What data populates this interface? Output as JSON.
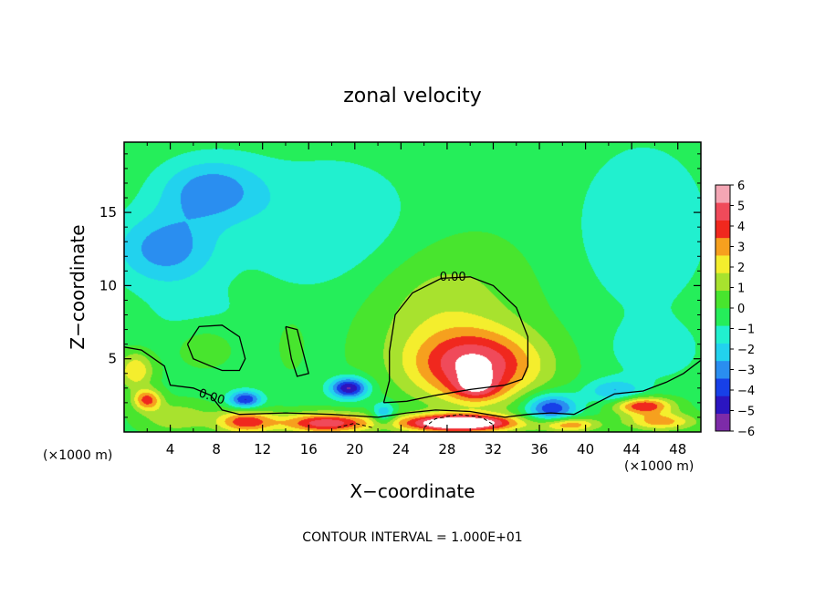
{
  "chart_data": {
    "type": "heatmap",
    "title": "zonal velocity",
    "xlabel": "X−coordinate",
    "ylabel": "Z−coordinate",
    "x_unit_left": "(×1000 m)",
    "x_unit_right": "(×1000 m)",
    "footer": "CONTOUR INTERVAL = 1.000E+01",
    "xlim": [
      0,
      50
    ],
    "ylim": [
      0,
      19.8
    ],
    "x_ticks": [
      4,
      8,
      12,
      16,
      20,
      24,
      28,
      32,
      36,
      40,
      44,
      48
    ],
    "x_tick_labels": [
      "4",
      "8",
      "12",
      "16",
      "20",
      "24",
      "28",
      "32",
      "36",
      "40",
      "44",
      "48"
    ],
    "y_ticks": [
      5,
      10,
      15
    ],
    "y_tick_labels": [
      "5",
      "10",
      "15"
    ],
    "contour_label": "0.00",
    "colorbar": {
      "min": -6,
      "max": 6,
      "ticks": [
        6,
        5,
        4,
        3,
        2,
        1,
        0,
        -1,
        -2,
        -3,
        -4,
        -5,
        -6
      ],
      "tick_labels": [
        "6",
        "5",
        "4",
        "3",
        "2",
        "1",
        "0",
        "−1",
        "−2",
        "−3",
        "−4",
        "−5",
        "−6"
      ],
      "colors": [
        "#7d2ba8",
        "#2b15c0",
        "#1740e8",
        "#2a8ef0",
        "#22d2ee",
        "#21f0cf",
        "#25ee5a",
        "#48e52e",
        "#a8e22e",
        "#f4ee2d",
        "#f6a01e",
        "#f0281e",
        "#f04a5a",
        "#f4a6b4"
      ]
    },
    "field_features": [
      {
        "x": 30.5,
        "z": 4.5,
        "sx": 5.5,
        "sz": 2.4,
        "value": 5.5
      },
      {
        "x": 30.5,
        "z": 3.0,
        "sx": 2.0,
        "sz": 0.9,
        "value": 2.5
      },
      {
        "x": 27.5,
        "z": 8.5,
        "sx": 7.0,
        "sz": 4.5,
        "value": 1.8
      },
      {
        "x": 19.5,
        "z": 3.0,
        "sx": 1.6,
        "sz": 0.7,
        "value": -5.5
      },
      {
        "x": 10.5,
        "z": 2.2,
        "sx": 1.4,
        "sz": 0.6,
        "value": -4.5
      },
      {
        "x": 2.0,
        "z": 2.2,
        "sx": 1.2,
        "sz": 0.7,
        "value": 4.2
      },
      {
        "x": 1.0,
        "z": 4.2,
        "sx": 1.5,
        "sz": 1.2,
        "value": 3.0
      },
      {
        "x": 4.5,
        "z": 1.0,
        "sx": 3.0,
        "sz": 1.0,
        "value": 2.0
      },
      {
        "x": 10.5,
        "z": 0.7,
        "sx": 2.5,
        "sz": 0.8,
        "value": 4.5
      },
      {
        "x": 17.5,
        "z": 0.6,
        "sx": 4.0,
        "sz": 0.7,
        "value": 5.5
      },
      {
        "x": 29.0,
        "z": 0.6,
        "sx": 5.0,
        "sz": 0.6,
        "value": 8.0
      },
      {
        "x": 37.0,
        "z": 1.6,
        "sx": 2.2,
        "sz": 1.0,
        "value": -4.5
      },
      {
        "x": 45.0,
        "z": 1.8,
        "sx": 2.5,
        "sz": 0.6,
        "value": 5.0
      },
      {
        "x": 46.5,
        "z": 0.7,
        "sx": 3.0,
        "sz": 0.6,
        "value": 3.5
      },
      {
        "x": 42.5,
        "z": 2.8,
        "sx": 2.5,
        "sz": 0.8,
        "value": -2.5
      },
      {
        "x": 38.5,
        "z": 0.5,
        "sx": 2.5,
        "sz": 0.5,
        "value": 4.0
      },
      {
        "x": 22.5,
        "z": 1.2,
        "sx": 1.0,
        "sz": 0.8,
        "value": -3.0
      },
      {
        "x": 7.5,
        "z": 16.5,
        "sx": 4.5,
        "sz": 2.2,
        "value": -3.0
      },
      {
        "x": 3.5,
        "z": 12.5,
        "sx": 4.5,
        "sz": 2.5,
        "value": -3.0
      },
      {
        "x": 18.0,
        "z": 14.0,
        "sx": 8.0,
        "sz": 5.0,
        "value": -1.5
      },
      {
        "x": 45.0,
        "z": 14.0,
        "sx": 6.0,
        "sz": 6.0,
        "value": -1.5
      },
      {
        "x": 46.0,
        "z": 5.5,
        "sx": 4.0,
        "sz": 2.0,
        "value": -1.2
      },
      {
        "x": 7.0,
        "z": 6.0,
        "sx": 2.5,
        "sz": 1.5,
        "value": 1.0
      },
      {
        "x": 14.5,
        "z": 6.0,
        "sx": 1.0,
        "sz": 1.5,
        "value": 1.0
      },
      {
        "x": 6.0,
        "z": 8.0,
        "sx": 5.0,
        "sz": 2.0,
        "value": -0.8
      }
    ],
    "background_value": 0.2,
    "zero_contours": [
      [
        [
          22.5,
          2.0
        ],
        [
          23.0,
          3.5
        ],
        [
          23.0,
          5.5
        ],
        [
          23.5,
          8.0
        ],
        [
          25.0,
          9.5
        ],
        [
          27.5,
          10.5
        ],
        [
          30.0,
          10.6
        ],
        [
          32.0,
          10.0
        ],
        [
          34.0,
          8.5
        ],
        [
          35.0,
          6.5
        ],
        [
          35.0,
          4.5
        ],
        [
          34.5,
          3.6
        ],
        [
          33.0,
          3.2
        ],
        [
          30.0,
          2.9
        ],
        [
          27.0,
          2.5
        ],
        [
          24.5,
          2.1
        ],
        [
          22.5,
          2.0
        ]
      ],
      [
        [
          5.5,
          6.0
        ],
        [
          6.5,
          7.2
        ],
        [
          8.5,
          7.3
        ],
        [
          10.0,
          6.5
        ],
        [
          10.5,
          5.0
        ],
        [
          10.0,
          4.2
        ],
        [
          8.5,
          4.2
        ],
        [
          7.5,
          4.5
        ],
        [
          6.0,
          5.0
        ],
        [
          5.5,
          6.0
        ]
      ],
      [
        [
          14.0,
          7.2
        ],
        [
          15.0,
          7.0
        ],
        [
          15.5,
          5.5
        ],
        [
          16.0,
          4.0
        ],
        [
          15.0,
          3.8
        ],
        [
          14.5,
          5.0
        ],
        [
          14.0,
          7.2
        ]
      ],
      [
        [
          0.0,
          5.8
        ],
        [
          1.5,
          5.6
        ],
        [
          3.5,
          4.5
        ],
        [
          4.0,
          3.2
        ],
        [
          6.0,
          3.0
        ],
        [
          7.5,
          2.5
        ],
        [
          8.5,
          1.5
        ],
        [
          10.0,
          1.2
        ],
        [
          14.0,
          1.3
        ],
        [
          18.0,
          1.2
        ],
        [
          22.0,
          1.0
        ],
        [
          24.5,
          1.3
        ],
        [
          27.0,
          1.5
        ],
        [
          30.0,
          1.4
        ],
        [
          33.0,
          1.0
        ],
        [
          35.0,
          1.2
        ],
        [
          37.0,
          1.3
        ],
        [
          39.0,
          1.2
        ],
        [
          41.0,
          2.0
        ],
        [
          42.5,
          2.6
        ],
        [
          45.0,
          2.8
        ],
        [
          47.0,
          3.4
        ],
        [
          48.5,
          4.0
        ],
        [
          50.0,
          4.9
        ]
      ]
    ],
    "negative_contours": [
      [
        [
          26.0,
          0.3
        ],
        [
          27.0,
          0.9
        ],
        [
          29.0,
          1.2
        ],
        [
          31.0,
          1.0
        ],
        [
          32.0,
          0.5
        ]
      ],
      [
        [
          18.5,
          0.3
        ],
        [
          20.0,
          0.6
        ],
        [
          21.5,
          0.3
        ]
      ]
    ]
  }
}
